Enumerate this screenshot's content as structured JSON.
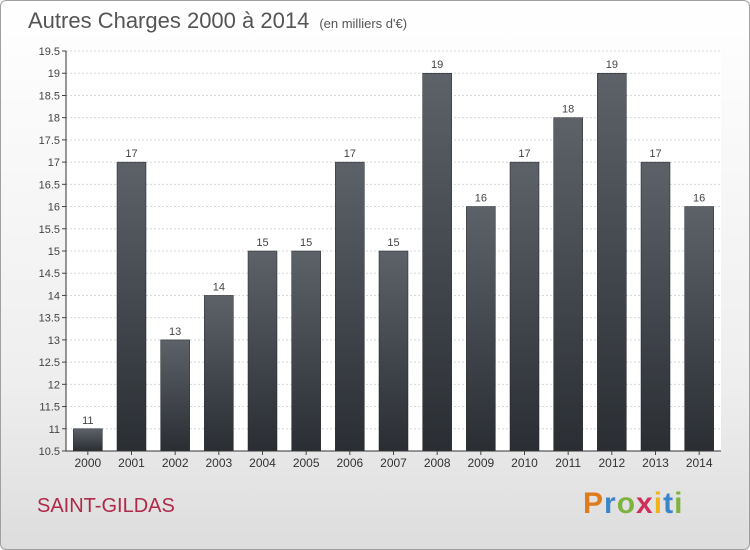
{
  "header": {
    "title": "Autres Charges 2000 à 2014",
    "subtitle": "(en milliers d'€)"
  },
  "footer": {
    "place": "SAINT-GILDAS",
    "logo": "Proxiti",
    "logo_colors": [
      "#e07b1c",
      "#3a86c8",
      "#7fb241",
      "#d02e5a",
      "#f2b21b",
      "#3a86c8",
      "#7fb241"
    ]
  },
  "chart_data": {
    "type": "bar",
    "title": "Autres Charges 2000 à 2014",
    "subtitle": "(en milliers d'€)",
    "categories": [
      "2000",
      "2001",
      "2002",
      "2003",
      "2004",
      "2005",
      "2006",
      "2007",
      "2008",
      "2009",
      "2010",
      "2011",
      "2012",
      "2013",
      "2014"
    ],
    "values": [
      11,
      17,
      13,
      14,
      15,
      15,
      17,
      15,
      19,
      16,
      17,
      18,
      19,
      17,
      16
    ],
    "ylim": [
      10.5,
      19.5
    ],
    "yticks": [
      "10.5",
      "11",
      "11.5",
      "12",
      "12.5",
      "13",
      "13.5",
      "14",
      "14.5",
      "15",
      "15.5",
      "16",
      "16.5",
      "17",
      "17.5",
      "18",
      "18.5",
      "19",
      "19.5"
    ],
    "grid": true,
    "bar_color_top": "#5d6269",
    "bar_color_bottom": "#2a2e33"
  }
}
